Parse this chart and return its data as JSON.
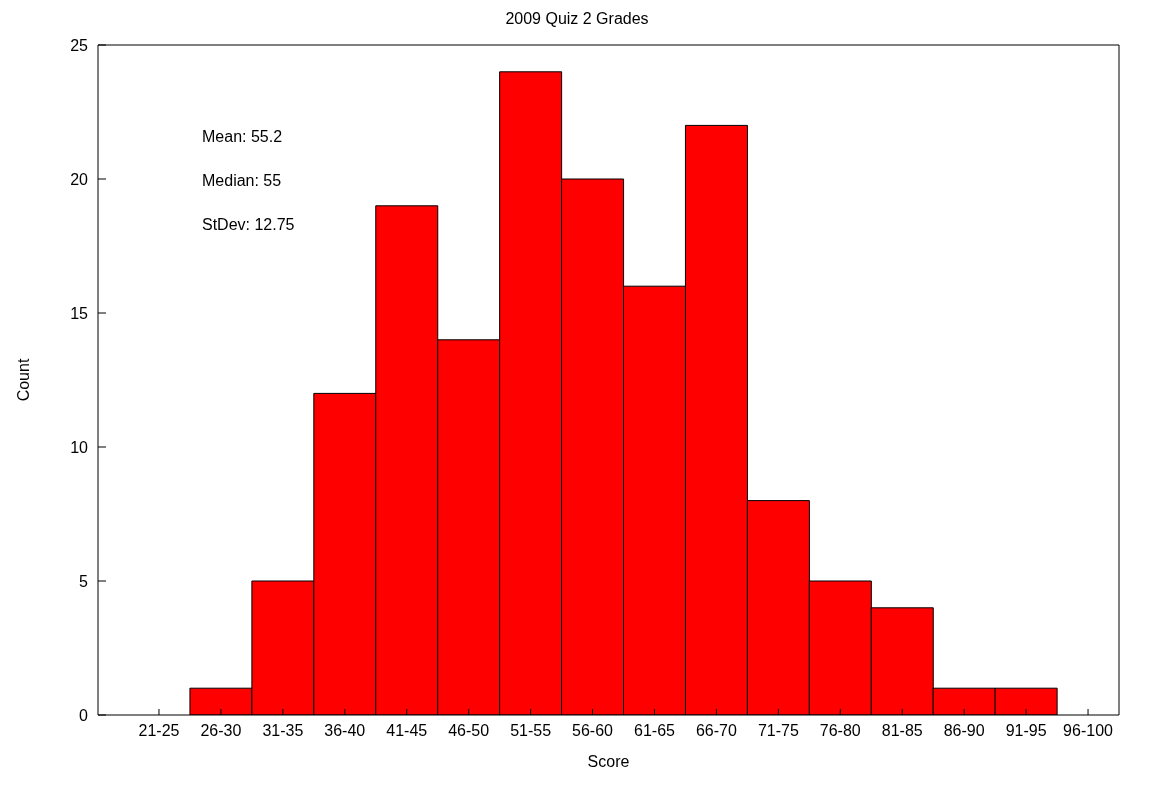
{
  "chart_data": {
    "type": "bar",
    "title": "2009 Quiz 2 Grades",
    "xlabel": "Score",
    "ylabel": "Count",
    "categories": [
      "21-25",
      "26-30",
      "31-35",
      "36-40",
      "41-45",
      "46-50",
      "51-55",
      "56-60",
      "61-65",
      "66-70",
      "71-75",
      "76-80",
      "81-85",
      "86-90",
      "91-95",
      "96-100"
    ],
    "values": [
      0,
      1,
      5,
      12,
      19,
      14,
      24,
      20,
      16,
      22,
      8,
      5,
      4,
      1,
      1,
      0
    ],
    "color": "#ff0000",
    "ylim": [
      0,
      25
    ],
    "yticks": [
      0,
      5,
      10,
      15,
      20,
      25
    ],
    "grid": false,
    "annotations": [
      "Mean: 55.2",
      "Median: 55",
      "StDev: 12.75"
    ]
  }
}
